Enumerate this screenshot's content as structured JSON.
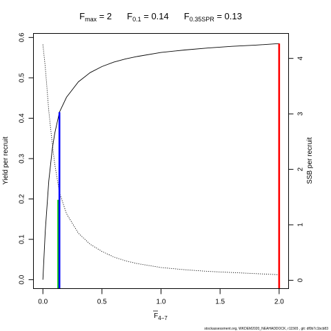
{
  "chart_data": {
    "type": "line",
    "title": {
      "fmax": {
        "label": "F",
        "sub": "max",
        "eq": " = 2"
      },
      "f01": {
        "label": "F",
        "sub": "0.1",
        "eq": " = 0.14"
      },
      "f035": {
        "label": "F",
        "sub": "0.35SPR",
        "eq": " = 0.13"
      }
    },
    "xlabel": {
      "main": "F",
      "sub": "4−7"
    },
    "ylabel": "Yield per recruit",
    "y2label": "SSB per recruit",
    "xlim": [
      -0.08,
      2.08
    ],
    "ylim": [
      -0.022,
      0.61
    ],
    "y2lim": [
      -0.15,
      4.45
    ],
    "xticks": [
      0.0,
      0.5,
      1.0,
      1.5,
      2.0
    ],
    "xtick_labels": [
      "0.0",
      "0.5",
      "1.0",
      "1.5",
      "2.0"
    ],
    "yticks": [
      0.0,
      0.1,
      0.2,
      0.3,
      0.4,
      0.5,
      0.6
    ],
    "ytick_labels": [
      "0.0",
      "0.1",
      "0.2",
      "0.3",
      "0.4",
      "0.5",
      "0.6"
    ],
    "y2ticks": [
      0,
      1,
      2,
      3,
      4
    ],
    "y2tick_labels": [
      "0",
      "1",
      "2",
      "3",
      "4"
    ],
    "grid": false,
    "series": [
      {
        "axis": "left",
        "style": "solid",
        "x": [
          0,
          0.02,
          0.05,
          0.08,
          0.1,
          0.14,
          0.2,
          0.3,
          0.4,
          0.5,
          0.6,
          0.7,
          0.8,
          1.0,
          1.2,
          1.4,
          1.6,
          1.8,
          2.0
        ],
        "y": [
          0,
          0.12,
          0.245,
          0.325,
          0.362,
          0.415,
          0.452,
          0.49,
          0.513,
          0.528,
          0.539,
          0.547,
          0.553,
          0.563,
          0.569,
          0.574,
          0.578,
          0.581,
          0.585
        ]
      },
      {
        "axis": "right",
        "style": "dotted",
        "x": [
          0,
          0.02,
          0.05,
          0.08,
          0.1,
          0.14,
          0.2,
          0.3,
          0.4,
          0.5,
          0.6,
          0.7,
          0.8,
          1.0,
          1.2,
          1.4,
          1.6,
          1.8,
          2.0
        ],
        "y": [
          4.25,
          3.85,
          3.05,
          2.45,
          2.1,
          1.58,
          1.2,
          0.85,
          0.65,
          0.52,
          0.42,
          0.35,
          0.3,
          0.23,
          0.19,
          0.16,
          0.14,
          0.12,
          0.1
        ]
      }
    ],
    "reference_lines": [
      {
        "name": "F0.35SPR",
        "x": 0.13,
        "y": 0.198,
        "color": "#00cc00"
      },
      {
        "name": "F0.1",
        "x": 0.14,
        "y": 0.415,
        "color": "#0000ff"
      },
      {
        "name": "Fmax",
        "x": 2.0,
        "y": 0.585,
        "color": "#ff0000"
      }
    ]
  },
  "footer": "stockassessment.org, WKDEM2020_NEAHADDOCK, r11565 , git: df0b7c1bcb83"
}
